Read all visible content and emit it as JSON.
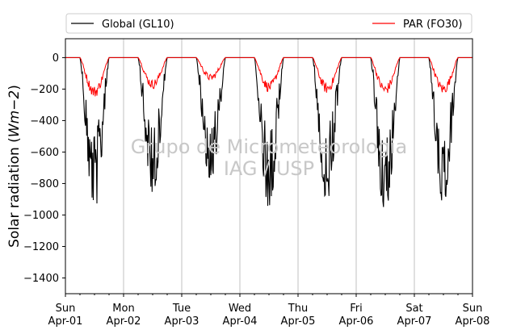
{
  "chart_data": {
    "type": "line",
    "ylabel": "Solar radiation (Wm−2)",
    "ylabel_text": "Solar radiation (",
    "ylabel_unit": "Wm−2",
    "ylabel_close": ")",
    "ylim": [
      -1500,
      120
    ],
    "yticks": [
      0,
      -200,
      -400,
      -600,
      -800,
      -1000,
      -1200,
      -1400
    ],
    "xlim": [
      "2024-04-01",
      "2024-04-08"
    ],
    "xticks": [
      {
        "day": "Sun",
        "date": "Apr-01"
      },
      {
        "day": "Mon",
        "date": "Apr-02"
      },
      {
        "day": "Tue",
        "date": "Apr-03"
      },
      {
        "day": "Wed",
        "date": "Apr-04"
      },
      {
        "day": "Thu",
        "date": "Apr-05"
      },
      {
        "day": "Fri",
        "date": "Apr-06"
      },
      {
        "day": "Sat",
        "date": "Apr-07"
      },
      {
        "day": "Sun",
        "date": "Apr-08"
      }
    ],
    "grid": "vertical",
    "legend_placement": "top",
    "watermark": [
      "Grupo de Micrometeorologia",
      "IAG / USP"
    ],
    "series": [
      {
        "name": "Global (GL10)",
        "color": "#000000",
        "daily_peaks": [
          -1000,
          -870,
          -810,
          -960,
          -920,
          -1010,
          -940
        ]
      },
      {
        "name": "PAR (FO30)",
        "color": "#ff0000",
        "daily_peaks": [
          -255,
          -200,
          -150,
          -220,
          -230,
          -240,
          -235
        ]
      }
    ]
  }
}
